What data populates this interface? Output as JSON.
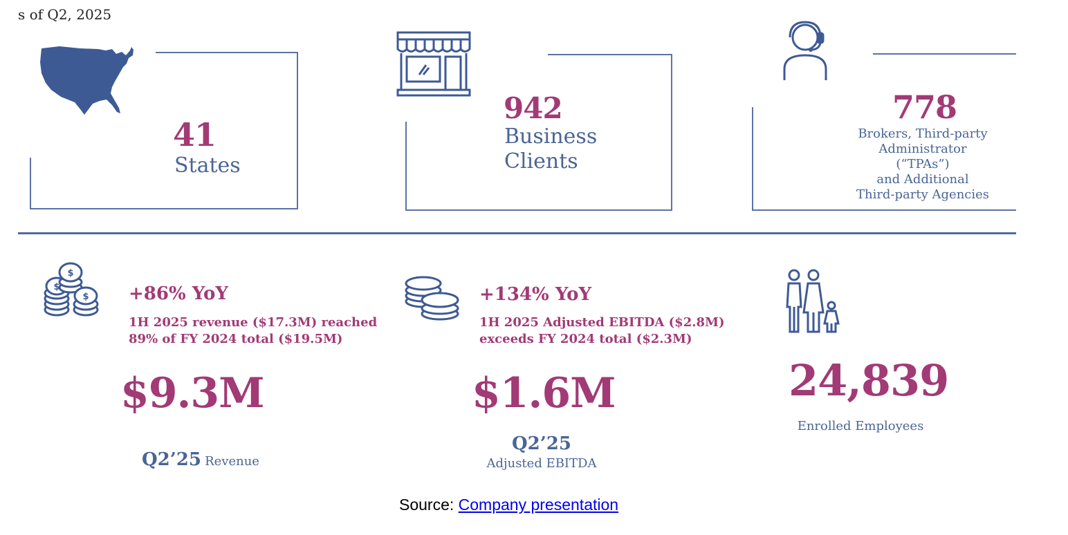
{
  "header": {
    "as_of": "s of Q2, 2025"
  },
  "top_stats": [
    {
      "value": "41",
      "label_lines": [
        "States"
      ]
    },
    {
      "value": "942",
      "label_lines": [
        "Business",
        "Clients"
      ]
    },
    {
      "value": "778",
      "label_lines": [
        "Brokers, Third-party",
        "Administrator",
        "(“TPAs”)",
        "and Additional",
        "Third-party Agencies"
      ]
    }
  ],
  "bottom_stats": [
    {
      "yoy": "+86% YoY",
      "desc_lines": [
        "1H 2025 revenue ($17.3M) reached",
        "89% of FY 2024 total ($19.5M)"
      ],
      "value": "$9.3M",
      "period": "Q2’25",
      "caption": "Revenue"
    },
    {
      "yoy": "+134% YoY",
      "desc_lines": [
        "1H 2025 Adjusted EBITDA ($2.8M)",
        "exceeds FY 2024 total ($2.3M)"
      ],
      "value": "$1.6M",
      "period": "Q2’25",
      "caption": "Adjusted EBITDA"
    },
    {
      "value": "24,839",
      "caption": "Enrolled Employees"
    }
  ],
  "source": {
    "prefix": "Source: ",
    "link_text": "Company presentation"
  },
  "colors": {
    "navy": "#4a6596",
    "magenta": "#a23a76",
    "link": "#0000ee"
  },
  "icons": [
    "usa-map-icon",
    "storefront-icon",
    "headset-person-icon",
    "coin-stack-icon",
    "coins-icon",
    "family-icon"
  ]
}
